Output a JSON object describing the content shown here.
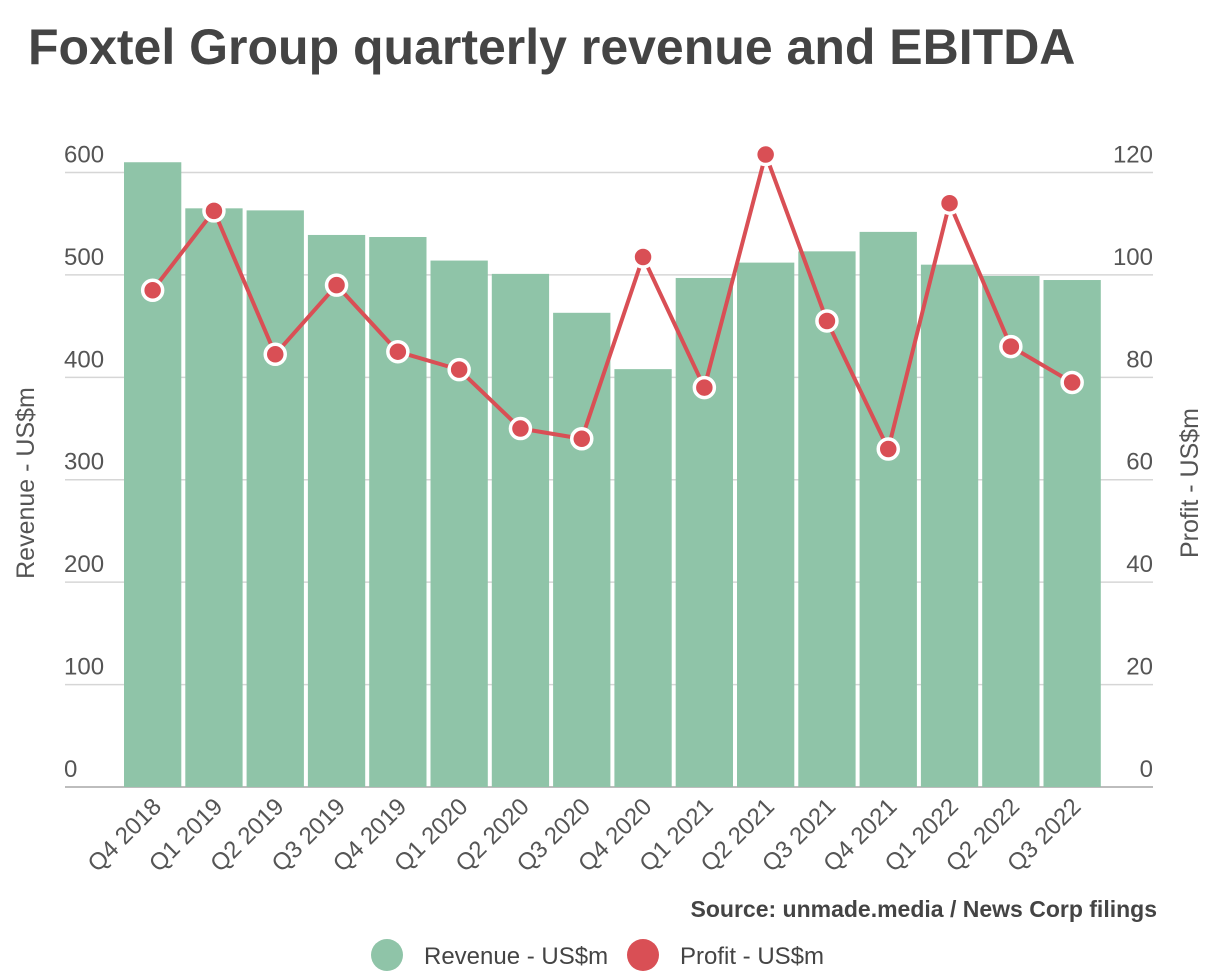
{
  "chart_data": {
    "type": "bar",
    "title": "Foxtel Group quarterly revenue and EBITDA",
    "source": "Source: unmade.media / News Corp filings",
    "categories": [
      "Q4 2018",
      "Q1 2019",
      "Q2 2019",
      "Q3 2019",
      "Q4 2019",
      "Q1 2020",
      "Q2 2020",
      "Q3 2020",
      "Q4 2020",
      "Q1 2021",
      "Q2 2021",
      "Q3 2021",
      "Q4 2021",
      "Q1 2022",
      "Q2 2022",
      "Q3 2022"
    ],
    "series": [
      {
        "name": "Revenue - US$m",
        "type": "bar",
        "axis": "left",
        "color": "#8fc4a8",
        "values": [
          610,
          565,
          563,
          539,
          537,
          514,
          501,
          463,
          408,
          497,
          512,
          523,
          542,
          510,
          499,
          495
        ]
      },
      {
        "name": "Profit - US$m",
        "type": "line",
        "axis": "right",
        "color": "#d94f55",
        "values": [
          97,
          112.5,
          84.5,
          98,
          85,
          81.5,
          70,
          68,
          103.5,
          78,
          123.5,
          91,
          66,
          114,
          86,
          79
        ]
      }
    ],
    "ylabel_left": "Revenue - US$m",
    "ylabel_right": "Profit - US$m",
    "ylim_left": [
      0,
      620
    ],
    "ylim_right": [
      0,
      124
    ],
    "yticks_left": [
      "0",
      "100",
      "200",
      "300",
      "400",
      "500",
      "600"
    ],
    "yticks_right": [
      "0",
      "20",
      "40",
      "60",
      "80",
      "100",
      "120"
    ],
    "grid": true,
    "legend_position": "bottom"
  }
}
